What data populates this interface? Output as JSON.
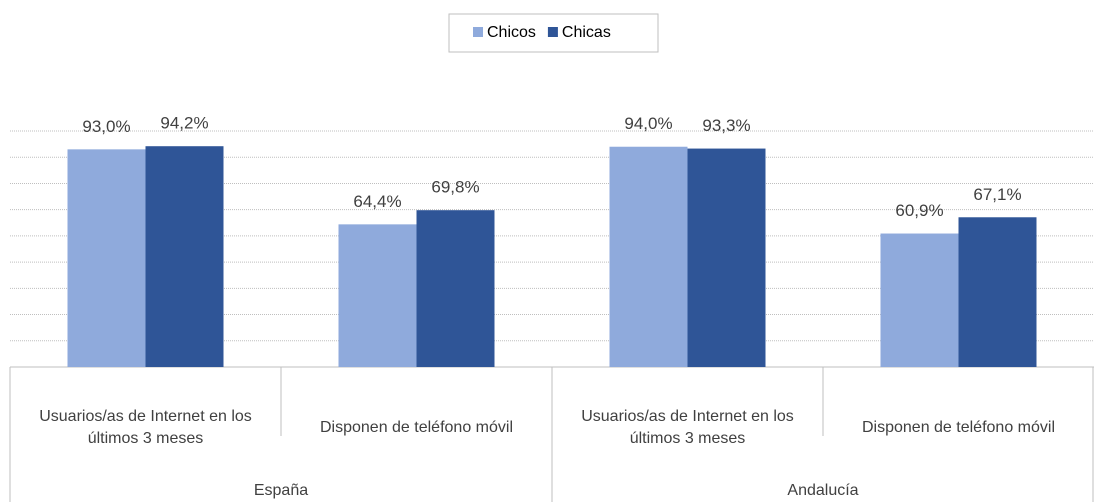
{
  "chart_data": {
    "type": "bar",
    "categories": [
      "Usuarios/as de Internet en los últimos 3 meses",
      "Disponen de teléfono móvil",
      "Usuarios/as de Internet en los últimos 3 meses",
      "Disponen de teléfono móvil"
    ],
    "groups": [
      "España",
      "Andalucía"
    ],
    "series": [
      {
        "name": "Chicos",
        "color": "#8faadc",
        "values": [
          93.0,
          64.4,
          94.0,
          60.9
        ],
        "value_labels": [
          "93,0%",
          "64,4%",
          "94,0%",
          "60,9%"
        ]
      },
      {
        "name": "Chicas",
        "color": "#2f5597",
        "values": [
          94.2,
          69.8,
          93.3,
          67.1
        ],
        "value_labels": [
          "94,2%",
          "69,8%",
          "93,3%",
          "67,1%"
        ]
      }
    ],
    "ylim": [
      10,
      100
    ],
    "yticks": [
      10,
      20,
      30,
      40,
      50,
      60,
      70,
      80,
      90,
      100
    ],
    "grid": true,
    "legend": "top"
  }
}
